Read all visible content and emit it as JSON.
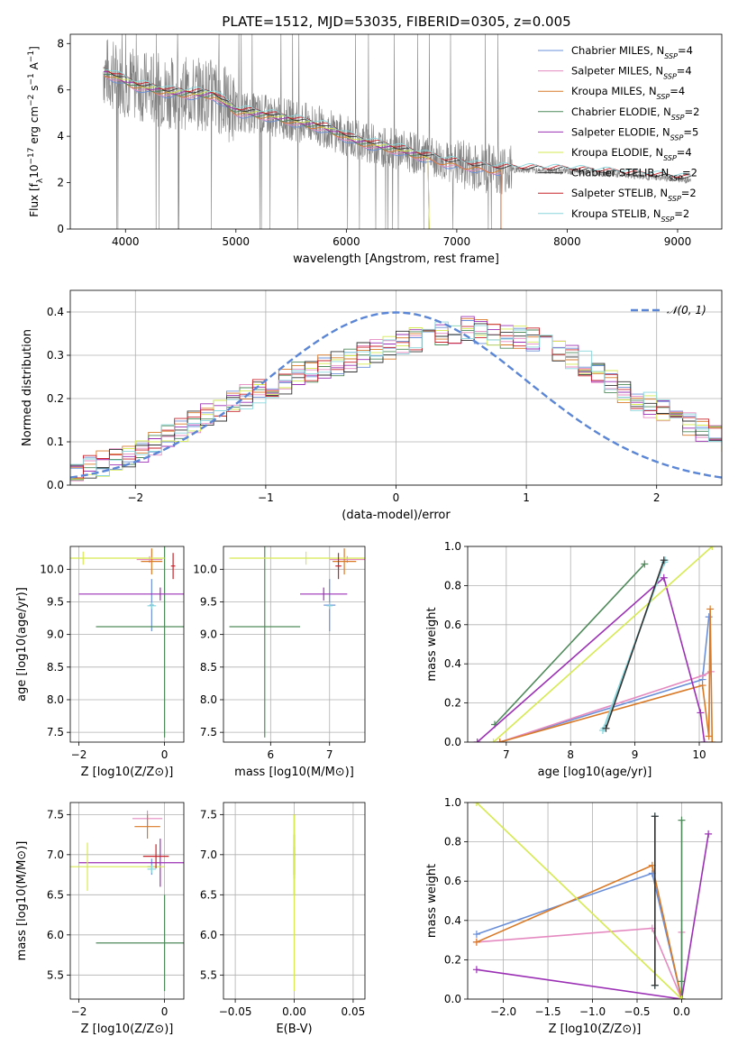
{
  "figure": {
    "title": "PLATE=1512, MJD=53035, FIBERID=0305, z=0.005"
  },
  "legend_entries": [
    {
      "label": "Chabrier MILES, N",
      "sub": "SSP",
      "suffix": "=4",
      "color": "#6a8fd8"
    },
    {
      "label": "Salpeter MILES, N",
      "sub": "SSP",
      "suffix": "=4",
      "color": "#e58ac0"
    },
    {
      "label": "Kroupa MILES, N",
      "sub": "SSP",
      "suffix": "=4",
      "color": "#d97a28"
    },
    {
      "label": "Chabrier ELODIE, N",
      "sub": "SSP",
      "suffix": "=2",
      "color": "#4f8a5a"
    },
    {
      "label": "Salpeter ELODIE, N",
      "sub": "SSP",
      "suffix": "=5",
      "color": "#9b30b5"
    },
    {
      "label": "Kroupa ELODIE, N",
      "sub": "SSP",
      "suffix": "=4",
      "color": "#d6ea52"
    },
    {
      "label": "Chabrier STELIB, N",
      "sub": "SSP",
      "suffix": "=2",
      "color": "#333333"
    },
    {
      "label": "Salpeter STELIB, N",
      "sub": "SSP",
      "suffix": "=2",
      "color": "#c8252c"
    },
    {
      "label": "Kroupa STELIB, N",
      "sub": "SSP",
      "suffix": "=2",
      "color": "#8ad6dc"
    }
  ],
  "chart_data": [
    {
      "id": "spectrum",
      "type": "line",
      "title": "PLATE=1512, MJD=53035, FIBERID=0305, z=0.005",
      "xlabel": "wavelength [Angstrom, rest frame]",
      "ylabel_parts": [
        "Flux [f",
        "λ",
        "10",
        "−17",
        " erg cm",
        "−2",
        " s",
        "−1",
        " A",
        "−1",
        "]"
      ],
      "xlim": [
        3500,
        9400
      ],
      "ylim": [
        0,
        8.4
      ],
      "xticks": [
        "4000",
        "5000",
        "6000",
        "7000",
        "8000",
        "9000"
      ],
      "yticks": [
        "0",
        "2",
        "4",
        "6",
        "8"
      ],
      "data_curve": {
        "color": "#808080",
        "range": [
          3800,
          9120
        ],
        "continuum": [
          [
            3800,
            6.8
          ],
          [
            3950,
            6.5
          ],
          [
            4100,
            6.2
          ],
          [
            4400,
            5.9
          ],
          [
            4800,
            5.8
          ],
          [
            5000,
            5.1
          ],
          [
            5300,
            4.9
          ],
          [
            5800,
            4.4
          ],
          [
            6100,
            3.8
          ],
          [
            6500,
            3.4
          ],
          [
            6900,
            2.9
          ],
          [
            7300,
            2.6
          ],
          [
            7600,
            2.55
          ],
          [
            8000,
            2.5
          ],
          [
            8500,
            2.35
          ],
          [
            9120,
            2.1
          ]
        ]
      },
      "model_curves": [
        {
          "name": "Chabrier MILES",
          "color": "#6a8fd8",
          "end": 7400,
          "drop_to_zero": true
        },
        {
          "name": "Salpeter MILES",
          "color": "#e58ac0",
          "end": 7400,
          "drop_to_zero": true
        },
        {
          "name": "Kroupa MILES",
          "color": "#d97a28",
          "end": 7400,
          "drop_to_zero": true
        },
        {
          "name": "Chabrier ELODIE",
          "color": "#4f8a5a",
          "end": 6750,
          "drop_to_zero": true
        },
        {
          "name": "Salpeter ELODIE",
          "color": "#9b30b5",
          "end": 6750,
          "drop_to_zero": true
        },
        {
          "name": "Kroupa ELODIE",
          "color": "#d6ea52",
          "end": 6750,
          "drop_to_zero": true
        },
        {
          "name": "Chabrier STELIB",
          "color": "#333333",
          "end": 9120,
          "drop_to_zero": false
        },
        {
          "name": "Salpeter STELIB",
          "color": "#c8252c",
          "end": 9120,
          "drop_to_zero": false
        },
        {
          "name": "Kroupa STELIB",
          "color": "#8ad6dc",
          "end": 9120,
          "drop_to_zero": false
        }
      ]
    },
    {
      "id": "residuals",
      "type": "line",
      "xlabel": "(data-model)/error",
      "ylabel": "Normed distribution",
      "xlim": [
        -2.5,
        2.5
      ],
      "ylim": [
        0,
        0.45
      ],
      "xticks": [
        "−2",
        "−1",
        "0",
        "1",
        "2"
      ],
      "yticks": [
        "0.0",
        "0.1",
        "0.2",
        "0.3",
        "0.4"
      ],
      "grid": true,
      "legend": {
        "label": "𝒩(0, 1)",
        "position": "top-right",
        "color": "#5b86d6"
      },
      "gaussian": {
        "mean": 0,
        "sigma": 1
      },
      "bin_edges_start": -2.5,
      "bin_width": 0.1,
      "base_hist": [
        0.03,
        0.04,
        0.05,
        0.06,
        0.07,
        0.08,
        0.095,
        0.11,
        0.13,
        0.145,
        0.16,
        0.175,
        0.19,
        0.205,
        0.215,
        0.225,
        0.24,
        0.255,
        0.265,
        0.275,
        0.28,
        0.29,
        0.3,
        0.31,
        0.32,
        0.33,
        0.335,
        0.345,
        0.35,
        0.355,
        0.36,
        0.355,
        0.35,
        0.345,
        0.34,
        0.335,
        0.325,
        0.31,
        0.295,
        0.28,
        0.26,
        0.24,
        0.22,
        0.2,
        0.185,
        0.17,
        0.155,
        0.14,
        0.125,
        0.11,
        0.1,
        0.09,
        0.08,
        0.075,
        0.065,
        0.06,
        0.055,
        0.05,
        0.045,
        0.04,
        0.05,
        0.045,
        0.055,
        0.05,
        0.045,
        0.06,
        0.055,
        0.065,
        0.06,
        0.05
      ]
    },
    {
      "id": "age-vs-Z",
      "type": "scatter",
      "xlabel": "Z [log10(Z/Z⊙)]",
      "ylabel": "age  [log10(age/yr)]",
      "xlim": [
        -2.2,
        0.45
      ],
      "ylim": [
        7.35,
        10.35
      ],
      "xticks": [
        "−2",
        "0"
      ],
      "yticks": [
        "7.5",
        "8.0",
        "8.5",
        "9.0",
        "9.5",
        "10.0"
      ],
      "grid": true,
      "points": [
        {
          "x": -0.3,
          "y": 9.45,
          "xerr": 0.05,
          "yerr": 0.4,
          "color": "#6a8fd8"
        },
        {
          "x": -0.35,
          "y": 10.15,
          "xerr": 0.3,
          "yerr": 0.05,
          "color": "#e58ac0"
        },
        {
          "x": -0.3,
          "y": 10.12,
          "xerr": 0.25,
          "yerr": 0.2,
          "color": "#d97a28"
        },
        {
          "x": 0.0,
          "y": 9.12,
          "xerr": 1.6,
          "yerr": 1.7,
          "color": "#4f8a5a"
        },
        {
          "x": -0.1,
          "y": 9.62,
          "xerr": 1.9,
          "yerr": 0.1,
          "color": "#9b30b5"
        },
        {
          "x": -1.9,
          "y": 10.17,
          "xerr": 1.9,
          "yerr": 0.1,
          "color": "#d6ea52"
        },
        {
          "x": -0.3,
          "y": 9.44,
          "xerr": 0.1,
          "yerr": 0.05,
          "color": "#8ad6dc"
        },
        {
          "x": 0.2,
          "y": 10.05,
          "xerr": 0.05,
          "yerr": 0.2,
          "color": "#c8252c"
        }
      ]
    },
    {
      "id": "age-vs-mass",
      "type": "scatter",
      "xlabel": "mass [log10(M/M⊙)]",
      "ylabel": "",
      "xlim": [
        5.2,
        7.6
      ],
      "ylim": [
        7.35,
        10.35
      ],
      "xticks": [
        "6",
        "7"
      ],
      "yticks": [
        "7.5",
        "8.0",
        "8.5",
        "9.0",
        "9.5",
        "10.0"
      ],
      "grid": true,
      "points": [
        {
          "x": 7.0,
          "y": 9.45,
          "xerr": 0.1,
          "yerr": 0.4,
          "color": "#6a8fd8"
        },
        {
          "x": 7.3,
          "y": 10.15,
          "xerr": 0.3,
          "yerr": 0.05,
          "color": "#e58ac0"
        },
        {
          "x": 7.25,
          "y": 10.12,
          "xerr": 0.2,
          "yerr": 0.2,
          "color": "#d97a28"
        },
        {
          "x": 5.9,
          "y": 9.12,
          "xerr": 0.6,
          "yerr": 1.7,
          "color": "#4f8a5a"
        },
        {
          "x": 6.9,
          "y": 9.62,
          "xerr": 0.4,
          "yerr": 0.1,
          "color": "#9b30b5"
        },
        {
          "x": 6.6,
          "y": 10.17,
          "xerr": 1.3,
          "yerr": 0.1,
          "color": "#d6ea52"
        },
        {
          "x": 7.0,
          "y": 9.44,
          "xerr": 0.05,
          "yerr": 0.05,
          "color": "#8ad6dc"
        },
        {
          "x": 7.15,
          "y": 10.05,
          "xerr": 0.05,
          "yerr": 0.2,
          "color": "#c8252c"
        }
      ]
    },
    {
      "id": "weight-vs-age",
      "type": "line",
      "xlabel": "age  [log10(age/yr)]",
      "ylabel": "mass weight",
      "xlim": [
        6.4,
        10.35
      ],
      "ylim": [
        0,
        1
      ],
      "xticks": [
        "7",
        "8",
        "9",
        "10"
      ],
      "yticks": [
        "0.0",
        "0.2",
        "0.4",
        "0.6",
        "0.8",
        "1.0"
      ],
      "grid": true,
      "series": [
        {
          "color": "#6a8fd8",
          "x": [
            6.9,
            10.05,
            10.15
          ],
          "y": [
            0.0,
            0.32,
            0.64
          ]
        },
        {
          "color": "#e58ac0",
          "x": [
            6.9,
            10.05,
            10.18
          ],
          "y": [
            0.0,
            0.34,
            0.36
          ]
        },
        {
          "color": "#d97a28",
          "x": [
            6.9,
            10.05,
            10.15,
            10.17,
            10.2
          ],
          "y": [
            0.0,
            0.29,
            0.03,
            0.68,
            0.0
          ]
        },
        {
          "color": "#4f8a5a",
          "x": [
            6.82,
            9.15
          ],
          "y": [
            0.09,
            0.91
          ]
        },
        {
          "color": "#9b30b5",
          "x": [
            6.55,
            9.45,
            10.02,
            10.08
          ],
          "y": [
            0.0,
            0.84,
            0.15,
            0.0
          ]
        },
        {
          "color": "#d6ea52",
          "x": [
            6.8,
            10.2
          ],
          "y": [
            0.0,
            1.0
          ]
        },
        {
          "color": "#8ad6dc",
          "x": [
            8.52,
            9.47,
            9.46,
            8.5
          ],
          "y": [
            0.07,
            0.93,
            0.92,
            0.06
          ]
        },
        {
          "color": "#333333",
          "x": [
            8.55,
            9.45
          ],
          "y": [
            0.07,
            0.93
          ]
        }
      ]
    },
    {
      "id": "mass-vs-Z",
      "type": "scatter",
      "xlabel": "Z [log10(Z/Z⊙)]",
      "ylabel": "mass [log10(M/M⊙)]",
      "xlim": [
        -2.2,
        0.45
      ],
      "ylim": [
        5.2,
        7.65
      ],
      "xticks": [
        "−2",
        "0"
      ],
      "yticks": [
        "5.5",
        "6.0",
        "6.5",
        "7.0",
        "7.5"
      ],
      "grid": true,
      "points": [
        {
          "x": -0.3,
          "y": 6.85,
          "xerr": 0.1,
          "yerr": 0.1,
          "color": "#6a8fd8"
        },
        {
          "x": -0.4,
          "y": 7.45,
          "xerr": 0.35,
          "yerr": 0.1,
          "color": "#e58ac0"
        },
        {
          "x": -0.4,
          "y": 7.35,
          "xerr": 0.3,
          "yerr": 0.15,
          "color": "#d97a28"
        },
        {
          "x": 0.0,
          "y": 5.9,
          "xerr": 1.6,
          "yerr": 0.6,
          "color": "#4f8a5a"
        },
        {
          "x": -0.1,
          "y": 6.9,
          "xerr": 1.9,
          "yerr": 0.3,
          "color": "#9b30b5"
        },
        {
          "x": -1.8,
          "y": 6.85,
          "xerr": 1.8,
          "yerr": 0.3,
          "color": "#d6ea52"
        },
        {
          "x": -0.3,
          "y": 6.82,
          "xerr": 0.1,
          "yerr": 0.05,
          "color": "#8ad6dc"
        },
        {
          "x": -0.2,
          "y": 6.98,
          "xerr": 0.3,
          "yerr": 0.15,
          "color": "#c8252c"
        }
      ]
    },
    {
      "id": "mass-vs-ebv",
      "type": "scatter",
      "xlabel": "E(B-V)",
      "ylabel": "",
      "xlim": [
        -0.06,
        0.06
      ],
      "ylim": [
        5.2,
        7.65
      ],
      "xticks": [
        "−0.05",
        "0.00",
        "0.05"
      ],
      "yticks": [
        "5.5",
        "6.0",
        "6.5",
        "7.0",
        "7.5"
      ],
      "grid": true,
      "points": [
        {
          "x": 0.0,
          "y": 7.0,
          "xerr": 0.0,
          "yerr": 0.5,
          "color": "#e58ac0"
        },
        {
          "x": 0.0,
          "y": 7.1,
          "xerr": 0.0,
          "yerr": 0.4,
          "color": "#d97a28"
        },
        {
          "x": 0.0,
          "y": 7.0,
          "xerr": 0.0,
          "yerr": 0.25,
          "color": "#9b30b5"
        },
        {
          "x": 0.0,
          "y": 6.8,
          "xerr": 0.0,
          "yerr": 0.3,
          "color": "#6a8fd8"
        },
        {
          "x": 0.0,
          "y": 6.4,
          "xerr": 0.0,
          "yerr": 1.1,
          "color": "#d6ea52"
        }
      ]
    },
    {
      "id": "weight-vs-Z",
      "type": "line",
      "xlabel": "Z [log10(Z/Z⊙)]",
      "ylabel": "mass weight",
      "xlim": [
        -2.4,
        0.45
      ],
      "ylim": [
        0,
        1
      ],
      "xticks": [
        "−2.0",
        "−1.5",
        "−1.0",
        "−0.5",
        "0.0"
      ],
      "yticks": [
        "0.0",
        "0.2",
        "0.4",
        "0.6",
        "0.8",
        "1.0"
      ],
      "grid": true,
      "series": [
        {
          "color": "#6a8fd8",
          "x": [
            -2.3,
            -0.33,
            0.0
          ],
          "y": [
            0.33,
            0.64,
            0.0
          ]
        },
        {
          "color": "#e58ac0",
          "x": [
            -2.3,
            -0.33,
            0.0,
            0.0
          ],
          "y": [
            0.29,
            0.36,
            0.0,
            0.34
          ]
        },
        {
          "color": "#d97a28",
          "x": [
            -2.3,
            -0.33,
            0.0
          ],
          "y": [
            0.29,
            0.68,
            0.0
          ]
        },
        {
          "color": "#4f8a5a",
          "x": [
            0.0,
            0.0,
            0.0
          ],
          "y": [
            0.09,
            0.91,
            0.0
          ]
        },
        {
          "color": "#9b30b5",
          "x": [
            -2.3,
            0.0,
            0.3
          ],
          "y": [
            0.15,
            0.0,
            0.84
          ]
        },
        {
          "color": "#d6ea52",
          "x": [
            -2.3,
            0.0
          ],
          "y": [
            1.0,
            0.0
          ]
        },
        {
          "color": "#8ad6dc",
          "x": [
            -0.3,
            -0.3
          ],
          "y": [
            0.07,
            0.93
          ]
        },
        {
          "color": "#333333",
          "x": [
            -0.3,
            -0.3
          ],
          "y": [
            0.07,
            0.93
          ]
        }
      ]
    }
  ]
}
